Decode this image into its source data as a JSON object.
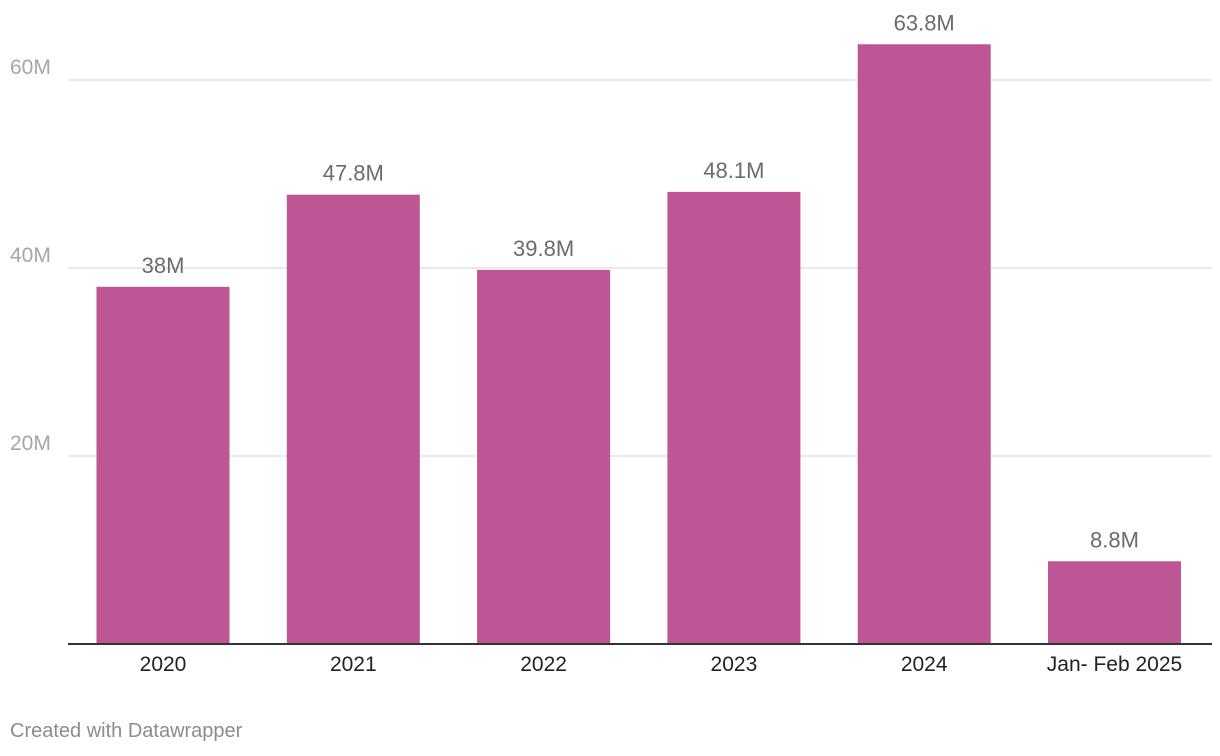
{
  "chart_data": {
    "type": "bar",
    "categories": [
      "2020",
      "2021",
      "2022",
      "2023",
      "2024",
      "Jan- Feb 2025"
    ],
    "values": [
      38,
      47.8,
      39.8,
      48.1,
      63.8,
      8.8
    ],
    "value_labels": [
      "38M",
      "47.8M",
      "39.8M",
      "48.1M",
      "63.8M",
      "8.8M"
    ],
    "title": "",
    "xlabel": "",
    "ylabel": "",
    "ylim": [
      0,
      60
    ],
    "y_ticks": [
      {
        "value": 20,
        "label": "20M"
      },
      {
        "value": 40,
        "label": "40M"
      },
      {
        "value": 60,
        "label": "60M"
      }
    ],
    "grid": true,
    "bar_color": "#be5594"
  },
  "footer": {
    "credit": "Created with Datawrapper"
  }
}
